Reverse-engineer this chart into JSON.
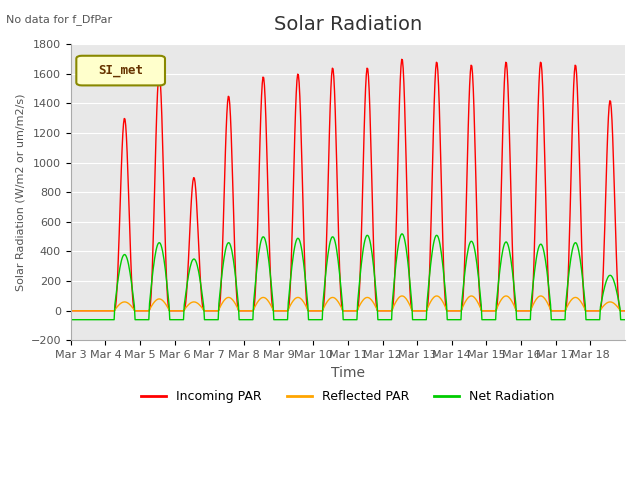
{
  "title": "Solar Radiation",
  "subtitle": "No data for f_DfPar",
  "ylabel": "Solar Radiation (W/m2 or um/m2/s)",
  "xlabel": "Time",
  "ylim": [
    -200,
    1800
  ],
  "yticks": [
    -200,
    0,
    200,
    400,
    600,
    800,
    1000,
    1200,
    1400,
    1600,
    1800
  ],
  "x_labels": [
    "Mar 3",
    "Mar 4",
    "Mar 5",
    "Mar 6",
    "Mar 7",
    "Mar 8",
    "Mar 9",
    "Mar 10",
    "Mar 11",
    "Mar 12",
    "Mar 13",
    "Mar 14",
    "Mar 15",
    "Mar 16",
    "Mar 17",
    "Mar 18"
  ],
  "legend_entries": [
    "Incoming PAR",
    "Reflected PAR",
    "Net Radiation"
  ],
  "legend_colors": [
    "#ff0000",
    "#ffa500",
    "#00cc00"
  ],
  "line_colors": {
    "incoming": "#ff0000",
    "reflected": "#ffa500",
    "net": "#00cc00"
  },
  "legend_label": "SI_met",
  "background_color": "#e8e8e8",
  "fig_background": "#ffffff",
  "title_fontsize": 14,
  "label_fontsize": 10,
  "n_days": 16,
  "points_per_day": 48,
  "incoming_peaks": [
    0,
    1300,
    1600,
    900,
    1450,
    1580,
    1600,
    1640,
    1640,
    1700,
    1680,
    1660,
    1680,
    1680,
    1660,
    1420
  ],
  "reflected_peaks": [
    0,
    60,
    80,
    60,
    90,
    90,
    90,
    90,
    90,
    100,
    100,
    100,
    100,
    100,
    90,
    60
  ],
  "net_peaks": [
    0,
    380,
    460,
    350,
    460,
    500,
    490,
    500,
    510,
    520,
    510,
    470,
    465,
    450,
    460,
    240
  ],
  "night_base": -60
}
